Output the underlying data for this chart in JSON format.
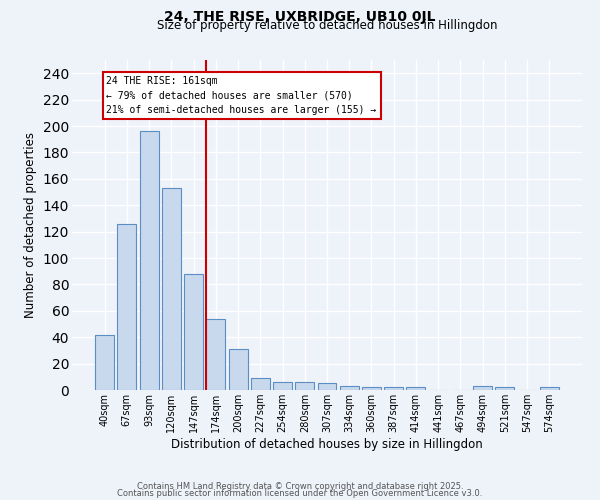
{
  "title1": "24, THE RISE, UXBRIDGE, UB10 0JL",
  "title2": "Size of property relative to detached houses in Hillingdon",
  "xlabel": "Distribution of detached houses by size in Hillingdon",
  "ylabel": "Number of detached properties",
  "categories": [
    "40sqm",
    "67sqm",
    "93sqm",
    "120sqm",
    "147sqm",
    "174sqm",
    "200sqm",
    "227sqm",
    "254sqm",
    "280sqm",
    "307sqm",
    "334sqm",
    "360sqm",
    "387sqm",
    "414sqm",
    "441sqm",
    "467sqm",
    "494sqm",
    "521sqm",
    "547sqm",
    "574sqm"
  ],
  "values": [
    42,
    126,
    196,
    153,
    88,
    54,
    31,
    9,
    6,
    6,
    5,
    3,
    2,
    2,
    2,
    0,
    0,
    3,
    2,
    0,
    2
  ],
  "bar_color": "#c9d9ed",
  "bar_edge_color": "#5b8ec4",
  "vline_color": "#cc0000",
  "annotation_title": "24 THE RISE: 161sqm",
  "annotation_line1": "← 79% of detached houses are smaller (570)",
  "annotation_line2": "21% of semi-detached houses are larger (155) →",
  "annotation_box_color": "#ffffff",
  "annotation_box_edge": "#cc0000",
  "ylim": [
    0,
    250
  ],
  "yticks": [
    0,
    20,
    40,
    60,
    80,
    100,
    120,
    140,
    160,
    180,
    200,
    220,
    240
  ],
  "footer1": "Contains HM Land Registry data © Crown copyright and database right 2025.",
  "footer2": "Contains public sector information licensed under the Open Government Licence v3.0.",
  "bg_color": "#eef2f9",
  "grid_color": "#ffffff"
}
